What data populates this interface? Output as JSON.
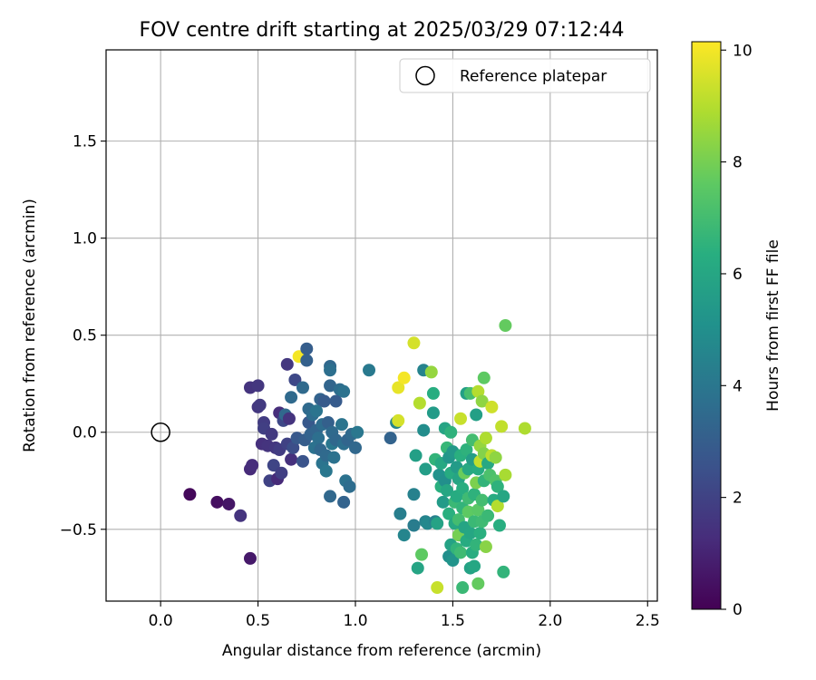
{
  "chart_data": {
    "type": "scatter",
    "title": "FOV centre drift starting at 2025/03/29 07:12:44",
    "xlabel": "Angular distance from reference (arcmin)",
    "ylabel": "Rotation from reference (arcmin)",
    "colorbar_label": "Hours from first FF file",
    "xlim": [
      -0.28,
      2.55
    ],
    "ylim": [
      -0.87,
      1.97
    ],
    "xticks": [
      0.0,
      0.5,
      1.0,
      1.5,
      2.0,
      2.5
    ],
    "xtick_labels": [
      "0.0",
      "0.5",
      "1.0",
      "1.5",
      "2.0",
      "2.5"
    ],
    "yticks": [
      -0.5,
      0.0,
      0.5,
      1.0,
      1.5
    ],
    "ytick_labels": [
      "−0.5",
      "0.0",
      "0.5",
      "1.0",
      "1.5"
    ],
    "clim": [
      0,
      10.15
    ],
    "cticks": [
      0,
      2,
      4,
      6,
      8,
      10
    ],
    "ctick_labels": [
      "0",
      "2",
      "4",
      "6",
      "8",
      "10"
    ],
    "colormap": "viridis",
    "grid": true,
    "legend": {
      "placement": "upper-right",
      "entries": [
        {
          "label": "Reference platepar",
          "marker": "open-circle"
        }
      ]
    },
    "reference": {
      "x": 0.0,
      "y": 0.0
    },
    "points": [
      {
        "x": 0.15,
        "y": -0.32,
        "c": 0.2
      },
      {
        "x": 0.29,
        "y": -0.36,
        "c": 0.4
      },
      {
        "x": 0.35,
        "y": -0.37,
        "c": 0.6
      },
      {
        "x": 0.46,
        "y": -0.65,
        "c": 0.7
      },
      {
        "x": 0.41,
        "y": -0.43,
        "c": 1.5
      },
      {
        "x": 0.46,
        "y": -0.19,
        "c": 1.2
      },
      {
        "x": 0.47,
        "y": -0.17,
        "c": 1.3
      },
      {
        "x": 0.46,
        "y": 0.23,
        "c": 1.5
      },
      {
        "x": 0.5,
        "y": 0.24,
        "c": 1.6
      },
      {
        "x": 0.5,
        "y": 0.13,
        "c": 1.6
      },
      {
        "x": 0.51,
        "y": 0.14,
        "c": 1.7
      },
      {
        "x": 0.52,
        "y": -0.06,
        "c": 1.4
      },
      {
        "x": 0.53,
        "y": 0.05,
        "c": 1.8
      },
      {
        "x": 0.53,
        "y": 0.02,
        "c": 1.9
      },
      {
        "x": 0.55,
        "y": -0.07,
        "c": 1.5
      },
      {
        "x": 0.56,
        "y": -0.25,
        "c": 2.0
      },
      {
        "x": 0.57,
        "y": -0.01,
        "c": 1.7
      },
      {
        "x": 0.58,
        "y": -0.17,
        "c": 2.1
      },
      {
        "x": 0.59,
        "y": -0.08,
        "c": 1.6
      },
      {
        "x": 0.6,
        "y": -0.24,
        "c": 1.2
      },
      {
        "x": 0.61,
        "y": 0.1,
        "c": 1.3
      },
      {
        "x": 0.61,
        "y": -0.09,
        "c": 1.8
      },
      {
        "x": 0.62,
        "y": -0.21,
        "c": 1.9
      },
      {
        "x": 0.63,
        "y": 0.06,
        "c": 2.2
      },
      {
        "x": 0.64,
        "y": 0.09,
        "c": 3.4
      },
      {
        "x": 0.65,
        "y": -0.06,
        "c": 2.0
      },
      {
        "x": 0.65,
        "y": 0.35,
        "c": 1.6
      },
      {
        "x": 0.66,
        "y": 0.07,
        "c": 1.5
      },
      {
        "x": 0.67,
        "y": -0.14,
        "c": 1.4
      },
      {
        "x": 0.67,
        "y": 0.18,
        "c": 3.5
      },
      {
        "x": 0.68,
        "y": -0.08,
        "c": 2.4
      },
      {
        "x": 0.69,
        "y": 0.27,
        "c": 2.2
      },
      {
        "x": 0.7,
        "y": -0.03,
        "c": 2.8
      },
      {
        "x": 0.71,
        "y": 0.39,
        "c": 10.0
      },
      {
        "x": 0.73,
        "y": 0.23,
        "c": 3.5
      },
      {
        "x": 0.73,
        "y": -0.15,
        "c": 2.6
      },
      {
        "x": 0.74,
        "y": -0.04,
        "c": 3.0
      },
      {
        "x": 0.75,
        "y": 0.43,
        "c": 3.0
      },
      {
        "x": 0.75,
        "y": 0.37,
        "c": 3.1
      },
      {
        "x": 0.76,
        "y": 0.12,
        "c": 3.5
      },
      {
        "x": 0.76,
        "y": 0.05,
        "c": 2.8
      },
      {
        "x": 0.77,
        "y": -0.01,
        "c": 3.2
      },
      {
        "x": 0.78,
        "y": 0.09,
        "c": 3.6
      },
      {
        "x": 0.79,
        "y": -0.08,
        "c": 3.8
      },
      {
        "x": 0.8,
        "y": 0.01,
        "c": 3.3
      },
      {
        "x": 0.8,
        "y": 0.11,
        "c": 3.9
      },
      {
        "x": 0.81,
        "y": -0.03,
        "c": 3.7
      },
      {
        "x": 0.82,
        "y": 0.17,
        "c": 3.2
      },
      {
        "x": 0.82,
        "y": -0.09,
        "c": 3.4
      },
      {
        "x": 0.83,
        "y": 0.04,
        "c": 3.6
      },
      {
        "x": 0.83,
        "y": -0.16,
        "c": 3.9
      },
      {
        "x": 0.84,
        "y": 0.16,
        "c": 2.9
      },
      {
        "x": 0.85,
        "y": -0.2,
        "c": 4.0
      },
      {
        "x": 0.85,
        "y": -0.12,
        "c": 3.5
      },
      {
        "x": 0.86,
        "y": 0.05,
        "c": 3.1
      },
      {
        "x": 0.87,
        "y": 0.34,
        "c": 3.4
      },
      {
        "x": 0.87,
        "y": 0.32,
        "c": 3.7
      },
      {
        "x": 0.87,
        "y": 0.24,
        "c": 3.3
      },
      {
        "x": 0.88,
        "y": 0.0,
        "c": 3.5
      },
      {
        "x": 0.88,
        "y": -0.06,
        "c": 4.0
      },
      {
        "x": 0.89,
        "y": -0.13,
        "c": 3.8
      },
      {
        "x": 0.87,
        "y": -0.33,
        "c": 3.4
      },
      {
        "x": 0.9,
        "y": 0.16,
        "c": 2.9
      },
      {
        "x": 0.9,
        "y": -0.04,
        "c": 3.4
      },
      {
        "x": 0.92,
        "y": 0.22,
        "c": 3.6
      },
      {
        "x": 0.93,
        "y": 0.04,
        "c": 3.9
      },
      {
        "x": 0.94,
        "y": 0.21,
        "c": 3.8
      },
      {
        "x": 0.94,
        "y": -0.06,
        "c": 3.7
      },
      {
        "x": 0.94,
        "y": -0.36,
        "c": 3.2
      },
      {
        "x": 0.95,
        "y": -0.25,
        "c": 3.8
      },
      {
        "x": 0.96,
        "y": -0.04,
        "c": 3.3
      },
      {
        "x": 0.97,
        "y": -0.28,
        "c": 3.6
      },
      {
        "x": 0.98,
        "y": -0.01,
        "c": 3.5
      },
      {
        "x": 1.0,
        "y": -0.08,
        "c": 3.4
      },
      {
        "x": 1.01,
        "y": 0.0,
        "c": 4.0
      },
      {
        "x": 1.07,
        "y": 0.32,
        "c": 4.1
      },
      {
        "x": 1.18,
        "y": -0.03,
        "c": 3.2
      },
      {
        "x": 1.21,
        "y": 0.05,
        "c": 4.6
      },
      {
        "x": 1.22,
        "y": 0.23,
        "c": 9.8
      },
      {
        "x": 1.22,
        "y": 0.06,
        "c": 9.5
      },
      {
        "x": 1.23,
        "y": -0.42,
        "c": 4.3
      },
      {
        "x": 1.25,
        "y": 0.28,
        "c": 10.0
      },
      {
        "x": 1.25,
        "y": -0.53,
        "c": 4.6
      },
      {
        "x": 1.3,
        "y": 0.46,
        "c": 9.5
      },
      {
        "x": 1.3,
        "y": -0.32,
        "c": 4.4
      },
      {
        "x": 1.3,
        "y": -0.48,
        "c": 4.2
      },
      {
        "x": 1.31,
        "y": -0.12,
        "c": 5.7
      },
      {
        "x": 1.32,
        "y": -0.7,
        "c": 5.9
      },
      {
        "x": 1.33,
        "y": 0.15,
        "c": 9.0
      },
      {
        "x": 1.34,
        "y": -0.63,
        "c": 7.6
      },
      {
        "x": 1.35,
        "y": 0.01,
        "c": 4.9
      },
      {
        "x": 1.35,
        "y": 0.32,
        "c": 4.5
      },
      {
        "x": 1.36,
        "y": -0.19,
        "c": 5.6
      },
      {
        "x": 1.36,
        "y": -0.46,
        "c": 4.5
      },
      {
        "x": 1.37,
        "y": -0.47,
        "c": 4.7
      },
      {
        "x": 1.39,
        "y": 0.31,
        "c": 8.5
      },
      {
        "x": 1.4,
        "y": 0.2,
        "c": 6.3
      },
      {
        "x": 1.4,
        "y": 0.1,
        "c": 5.5
      },
      {
        "x": 1.41,
        "y": -0.14,
        "c": 6.6
      },
      {
        "x": 1.41,
        "y": -0.46,
        "c": 4.4
      },
      {
        "x": 1.42,
        "y": -0.47,
        "c": 5.8
      },
      {
        "x": 1.42,
        "y": -0.8,
        "c": 9.3
      },
      {
        "x": 1.43,
        "y": -0.22,
        "c": 5.1
      },
      {
        "x": 1.44,
        "y": -0.28,
        "c": 6.4
      },
      {
        "x": 1.44,
        "y": -0.16,
        "c": 6.1
      },
      {
        "x": 1.45,
        "y": -0.36,
        "c": 5.5
      },
      {
        "x": 1.46,
        "y": 0.02,
        "c": 5.9
      },
      {
        "x": 1.46,
        "y": -0.25,
        "c": 5.0
      },
      {
        "x": 1.47,
        "y": -0.08,
        "c": 6.7
      },
      {
        "x": 1.47,
        "y": -0.3,
        "c": 6.0
      },
      {
        "x": 1.48,
        "y": -0.42,
        "c": 6.4
      },
      {
        "x": 1.48,
        "y": -0.64,
        "c": 5.0
      },
      {
        "x": 1.48,
        "y": -0.13,
        "c": 5.3
      },
      {
        "x": 1.49,
        "y": 0.0,
        "c": 6.5
      },
      {
        "x": 1.49,
        "y": -0.21,
        "c": 6.2
      },
      {
        "x": 1.49,
        "y": -0.58,
        "c": 5.8
      },
      {
        "x": 1.5,
        "y": -0.66,
        "c": 5.2
      },
      {
        "x": 1.5,
        "y": -0.1,
        "c": 5.4
      },
      {
        "x": 1.51,
        "y": -0.36,
        "c": 6.8
      },
      {
        "x": 1.51,
        "y": -0.47,
        "c": 6.1
      },
      {
        "x": 1.52,
        "y": -0.18,
        "c": 5.5
      },
      {
        "x": 1.52,
        "y": -0.33,
        "c": 6.2
      },
      {
        "x": 1.52,
        "y": -0.6,
        "c": 6.6
      },
      {
        "x": 1.53,
        "y": -0.24,
        "c": 5.9
      },
      {
        "x": 1.53,
        "y": -0.45,
        "c": 7.0
      },
      {
        "x": 1.53,
        "y": -0.53,
        "c": 8.0
      },
      {
        "x": 1.54,
        "y": -0.12,
        "c": 6.4
      },
      {
        "x": 1.54,
        "y": -0.62,
        "c": 6.9
      },
      {
        "x": 1.54,
        "y": 0.07,
        "c": 9.3
      },
      {
        "x": 1.55,
        "y": -0.8,
        "c": 6.8
      },
      {
        "x": 1.55,
        "y": -0.29,
        "c": 6.3
      },
      {
        "x": 1.55,
        "y": -0.39,
        "c": 6.6
      },
      {
        "x": 1.56,
        "y": -0.21,
        "c": 7.8
      },
      {
        "x": 1.56,
        "y": -0.49,
        "c": 5.9
      },
      {
        "x": 1.57,
        "y": 0.2,
        "c": 5.7
      },
      {
        "x": 1.57,
        "y": -0.09,
        "c": 6.5
      },
      {
        "x": 1.57,
        "y": -0.56,
        "c": 6.2
      },
      {
        "x": 1.58,
        "y": -0.34,
        "c": 6.9
      },
      {
        "x": 1.58,
        "y": -0.19,
        "c": 6.1
      },
      {
        "x": 1.58,
        "y": -0.41,
        "c": 7.6
      },
      {
        "x": 1.59,
        "y": -0.7,
        "c": 5.8
      },
      {
        "x": 1.59,
        "y": 0.2,
        "c": 7.1
      },
      {
        "x": 1.59,
        "y": -0.52,
        "c": 6.0
      },
      {
        "x": 1.6,
        "y": -0.04,
        "c": 7.0
      },
      {
        "x": 1.6,
        "y": -0.14,
        "c": 5.6
      },
      {
        "x": 1.6,
        "y": -0.62,
        "c": 6.3
      },
      {
        "x": 1.61,
        "y": -0.32,
        "c": 6.5
      },
      {
        "x": 1.61,
        "y": -0.46,
        "c": 6.8
      },
      {
        "x": 1.61,
        "y": -0.69,
        "c": 6.0
      },
      {
        "x": 1.62,
        "y": 0.09,
        "c": 5.7
      },
      {
        "x": 1.62,
        "y": -0.26,
        "c": 8.1
      },
      {
        "x": 1.62,
        "y": -0.58,
        "c": 6.6
      },
      {
        "x": 1.63,
        "y": -0.78,
        "c": 7.7
      },
      {
        "x": 1.63,
        "y": -0.19,
        "c": 6.2
      },
      {
        "x": 1.63,
        "y": 0.21,
        "c": 9.0
      },
      {
        "x": 1.63,
        "y": -0.4,
        "c": 7.5
      },
      {
        "x": 1.64,
        "y": -0.07,
        "c": 8.5
      },
      {
        "x": 1.64,
        "y": -0.15,
        "c": 9.2
      },
      {
        "x": 1.64,
        "y": -0.52,
        "c": 6.4
      },
      {
        "x": 1.65,
        "y": 0.16,
        "c": 8.4
      },
      {
        "x": 1.65,
        "y": -0.35,
        "c": 7.0
      },
      {
        "x": 1.65,
        "y": -0.46,
        "c": 6.9
      },
      {
        "x": 1.66,
        "y": 0.28,
        "c": 7.6
      },
      {
        "x": 1.66,
        "y": -0.11,
        "c": 8.2
      },
      {
        "x": 1.66,
        "y": -0.25,
        "c": 6.6
      },
      {
        "x": 1.67,
        "y": -0.03,
        "c": 8.9
      },
      {
        "x": 1.67,
        "y": -0.59,
        "c": 8.3
      },
      {
        "x": 1.68,
        "y": -0.16,
        "c": 6.1
      },
      {
        "x": 1.68,
        "y": -0.43,
        "c": 6.8
      },
      {
        "x": 1.69,
        "y": -0.22,
        "c": 7.2
      },
      {
        "x": 1.7,
        "y": 0.13,
        "c": 9.4
      },
      {
        "x": 1.7,
        "y": -0.12,
        "c": 9.1
      },
      {
        "x": 1.71,
        "y": -0.35,
        "c": 6.2
      },
      {
        "x": 1.72,
        "y": -0.25,
        "c": 7.3
      },
      {
        "x": 1.72,
        "y": -0.13,
        "c": 8.4
      },
      {
        "x": 1.73,
        "y": -0.38,
        "c": 9.0
      },
      {
        "x": 1.73,
        "y": -0.28,
        "c": 6.5
      },
      {
        "x": 1.74,
        "y": -0.48,
        "c": 6.3
      },
      {
        "x": 1.75,
        "y": 0.03,
        "c": 9.2
      },
      {
        "x": 1.76,
        "y": -0.33,
        "c": 6.0
      },
      {
        "x": 1.76,
        "y": -0.72,
        "c": 6.6
      },
      {
        "x": 1.77,
        "y": 0.55,
        "c": 7.7
      },
      {
        "x": 1.77,
        "y": -0.22,
        "c": 8.8
      },
      {
        "x": 1.87,
        "y": 0.02,
        "c": 8.9
      }
    ]
  }
}
